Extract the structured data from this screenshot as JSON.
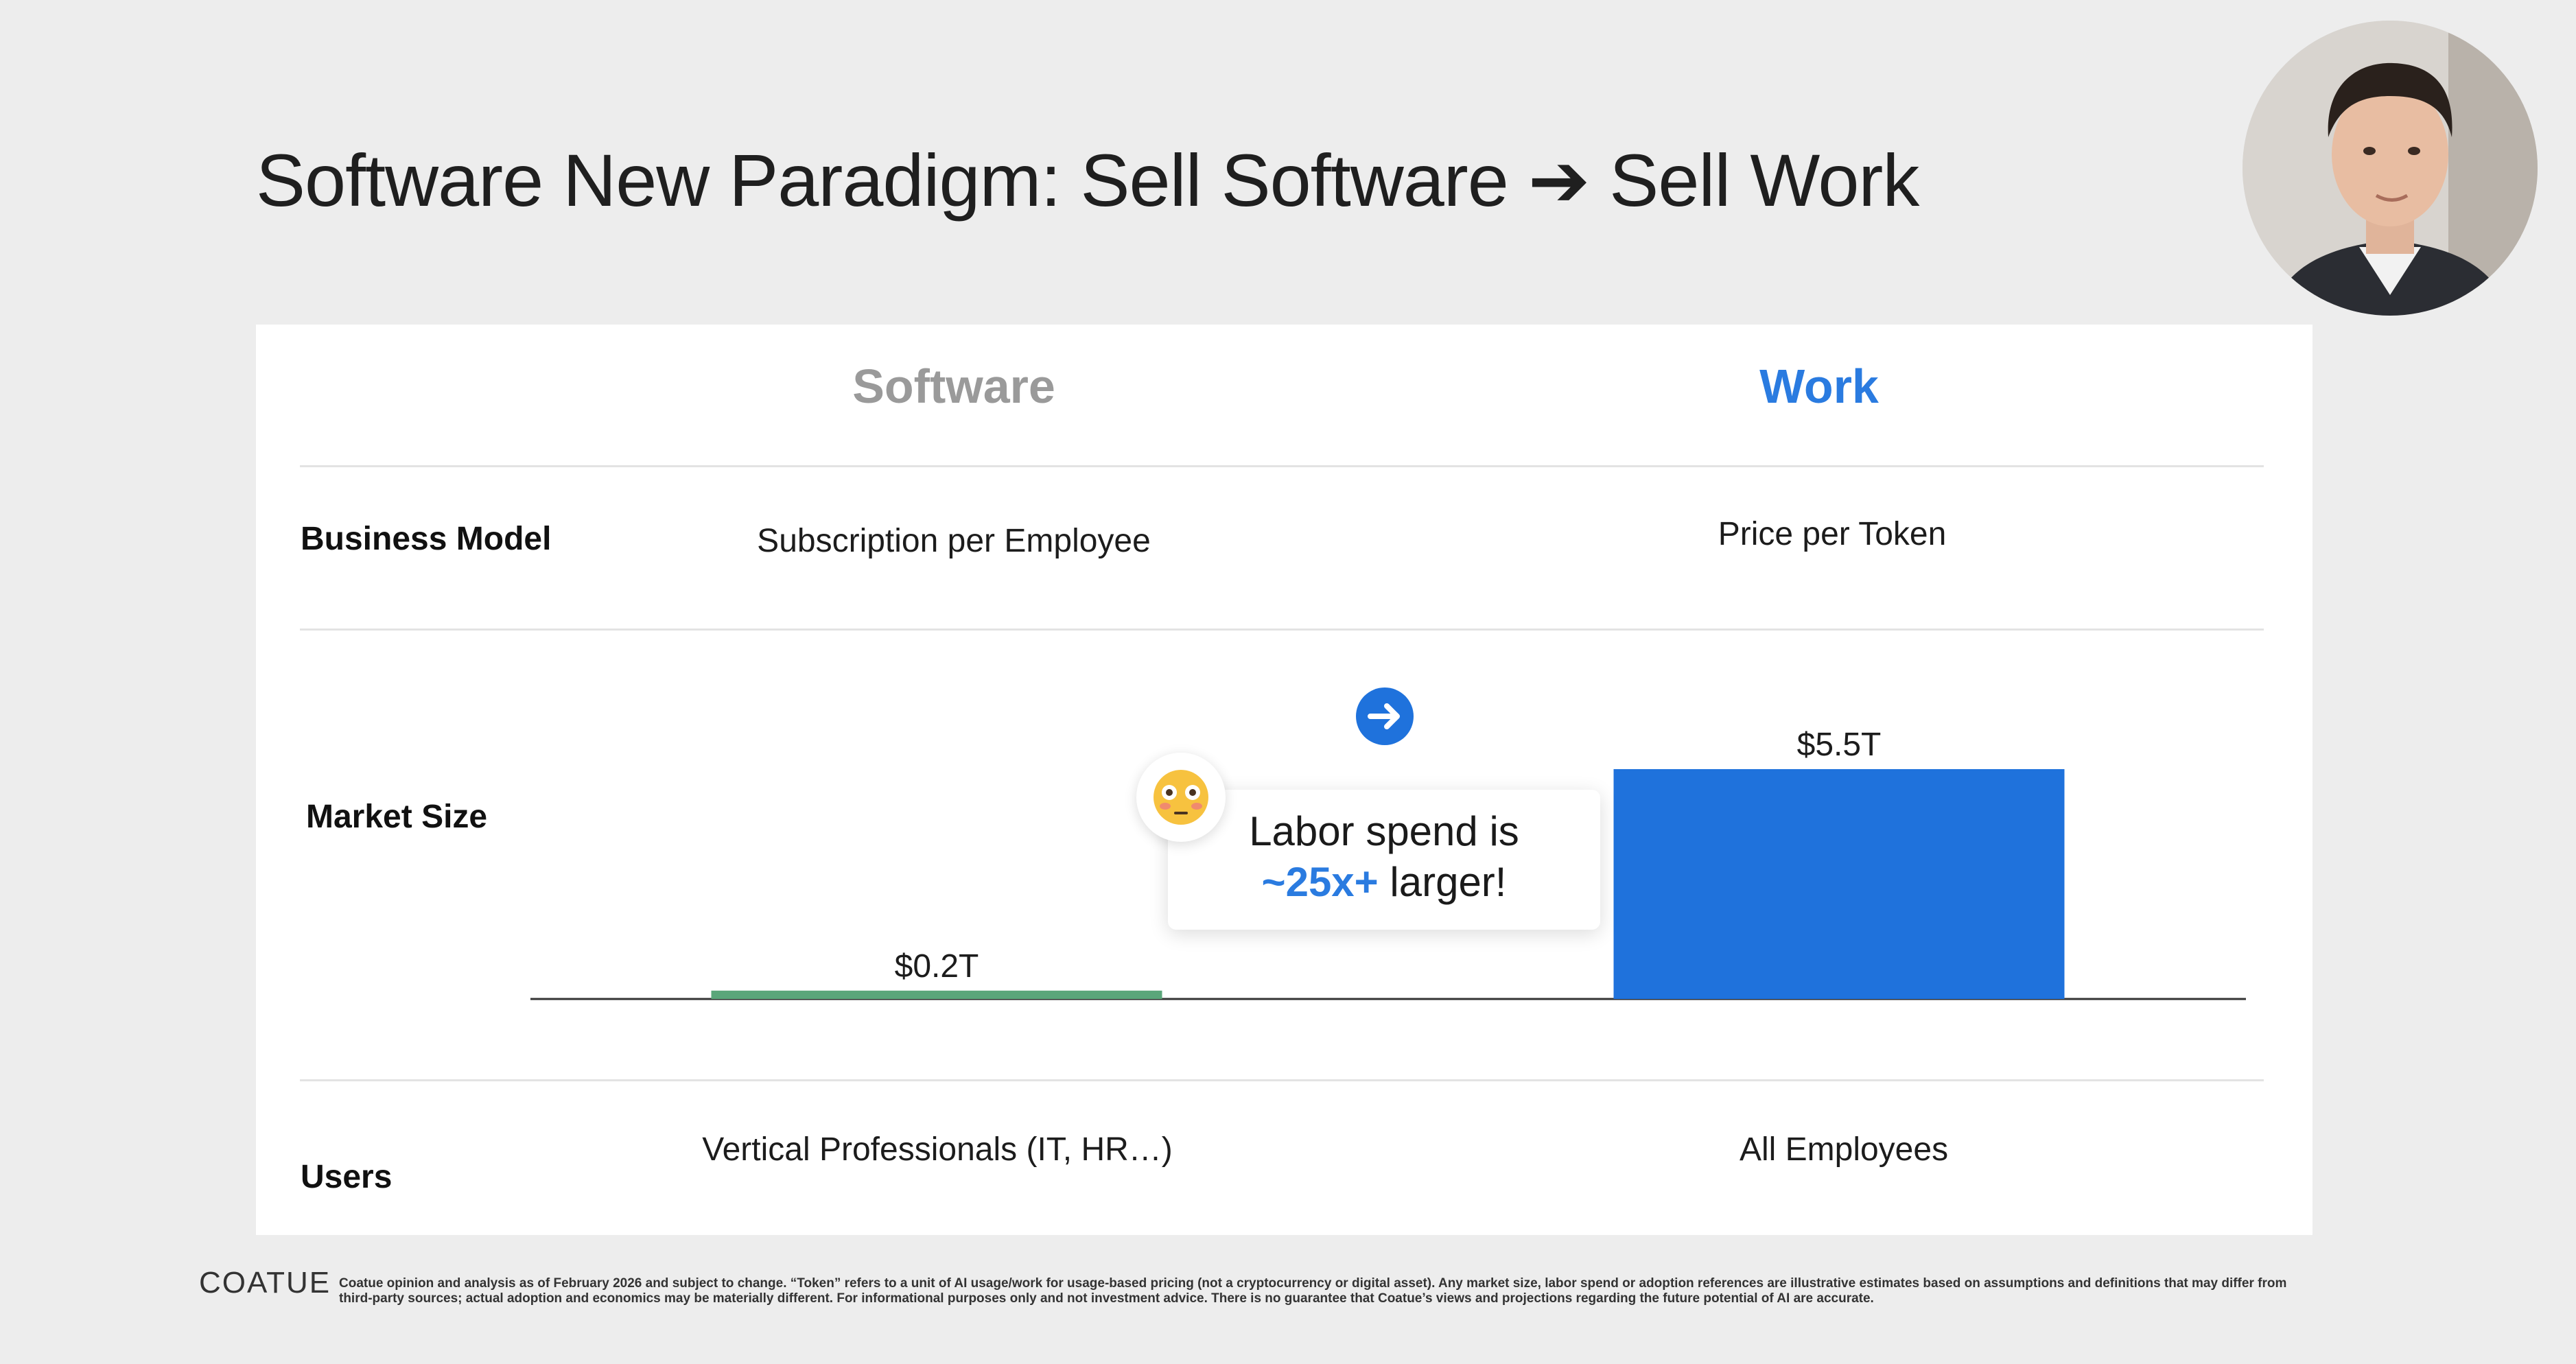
{
  "slide": {
    "title": "Software New Paradigm: Sell Software ➔ Sell Work"
  },
  "table": {
    "columns": [
      {
        "label": "Software",
        "color": "#9a9a9a"
      },
      {
        "label": "Work",
        "color": "#2a7be0"
      }
    ],
    "rows": {
      "business_model": {
        "label": "Business Model",
        "software": "Subscription per Employee",
        "work": "Price per Token"
      },
      "market_size": {
        "label": "Market Size"
      },
      "users": {
        "label": "Users",
        "software": "Vertical Professionals (IT, HR…)",
        "work": "All Employees"
      }
    }
  },
  "chart_data": {
    "type": "bar",
    "categories": [
      "Software",
      "Work"
    ],
    "values": [
      0.2,
      5.5
    ],
    "data_labels": [
      "$0.2T",
      "$5.5T"
    ],
    "colors": [
      "#5aa67a",
      "#1f72dc"
    ],
    "ylim": [
      0,
      5.5
    ],
    "title": "",
    "xlabel": "",
    "ylabel": ""
  },
  "callout": {
    "line1": "Labor spend is",
    "highlight": "~25x+",
    "rest": " larger!",
    "emoji_icon": "flushed-face-icon",
    "arrow_icon": "arrow-right-circle-icon",
    "accent_color": "#2a7be0"
  },
  "footer": {
    "logo": "COATUE",
    "disclaimer": "Coatue opinion and analysis as of February 2026 and subject to change. “Token” refers to a unit of AI usage/work for usage-based pricing (not a cryptocurrency or digital asset). Any market size, labor spend or adoption references are illustrative estimates based on assumptions and definitions that may differ from third-party sources; actual adoption and economics may be materially different. For informational purposes only and not investment advice. There is no guarantee that Coatue’s views and projections regarding the future potential of AI are accurate."
  }
}
